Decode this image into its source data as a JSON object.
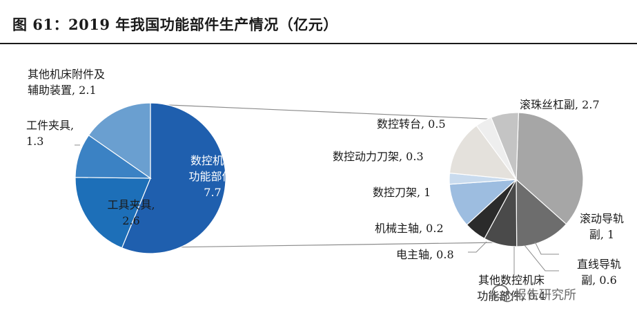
{
  "header": {
    "title": "图 61：2019 年我国功能部件生产情况（亿元）"
  },
  "watermark": {
    "text": "报告研究所",
    "icon": "wechat-icon"
  },
  "chart_data": [
    {
      "type": "pie",
      "name": "main",
      "slices": [
        {
          "label_lines": [
            "数控机床",
            "功能部件,",
            "7.7"
          ],
          "value": 7.7,
          "color": "#1f5fae"
        },
        {
          "label_lines": [
            "工具夹具,",
            "2.6"
          ],
          "value": 2.6,
          "color": "#1d6fb8"
        },
        {
          "label_lines": [
            "工件夹具,",
            "1.3"
          ],
          "value": 1.3,
          "color": "#3b82c4"
        },
        {
          "label_lines": [
            "其他机床附件及",
            "辅助装置, 2.1"
          ],
          "value": 2.1,
          "color": "#6a9fd0"
        }
      ]
    },
    {
      "type": "pie",
      "name": "breakdown",
      "slices": [
        {
          "label_lines": [
            "滚珠丝杠副, 2.7"
          ],
          "value": 2.7,
          "color": "#a6a6a6"
        },
        {
          "label_lines": [
            "滚动导轨",
            "副, 1"
          ],
          "value": 1.0,
          "color": "#6d6d6d"
        },
        {
          "label_lines": [
            "直线导轨",
            "副, 0.6"
          ],
          "value": 0.6,
          "color": "#4a4a4a"
        },
        {
          "label_lines": [
            "其他数控机床",
            "功能部件, 0.4"
          ],
          "value": 0.4,
          "color": "#2b2b2b"
        },
        {
          "label_lines": [
            "电主轴, 0.8"
          ],
          "value": 0.8,
          "color": "#9dbde0"
        },
        {
          "label_lines": [
            "机械主轴, 0.2"
          ],
          "value": 0.2,
          "color": "#c9dbee"
        },
        {
          "label_lines": [
            "数控刀架, 1"
          ],
          "value": 1.0,
          "color": "#e4e1dc"
        },
        {
          "label_lines": [
            "数控动力刀架, 0.3"
          ],
          "value": 0.3,
          "color": "#eeeeee"
        },
        {
          "label_lines": [
            "数控转台, 0.5"
          ],
          "value": 0.5,
          "color": "#c4c4c4"
        }
      ]
    }
  ]
}
